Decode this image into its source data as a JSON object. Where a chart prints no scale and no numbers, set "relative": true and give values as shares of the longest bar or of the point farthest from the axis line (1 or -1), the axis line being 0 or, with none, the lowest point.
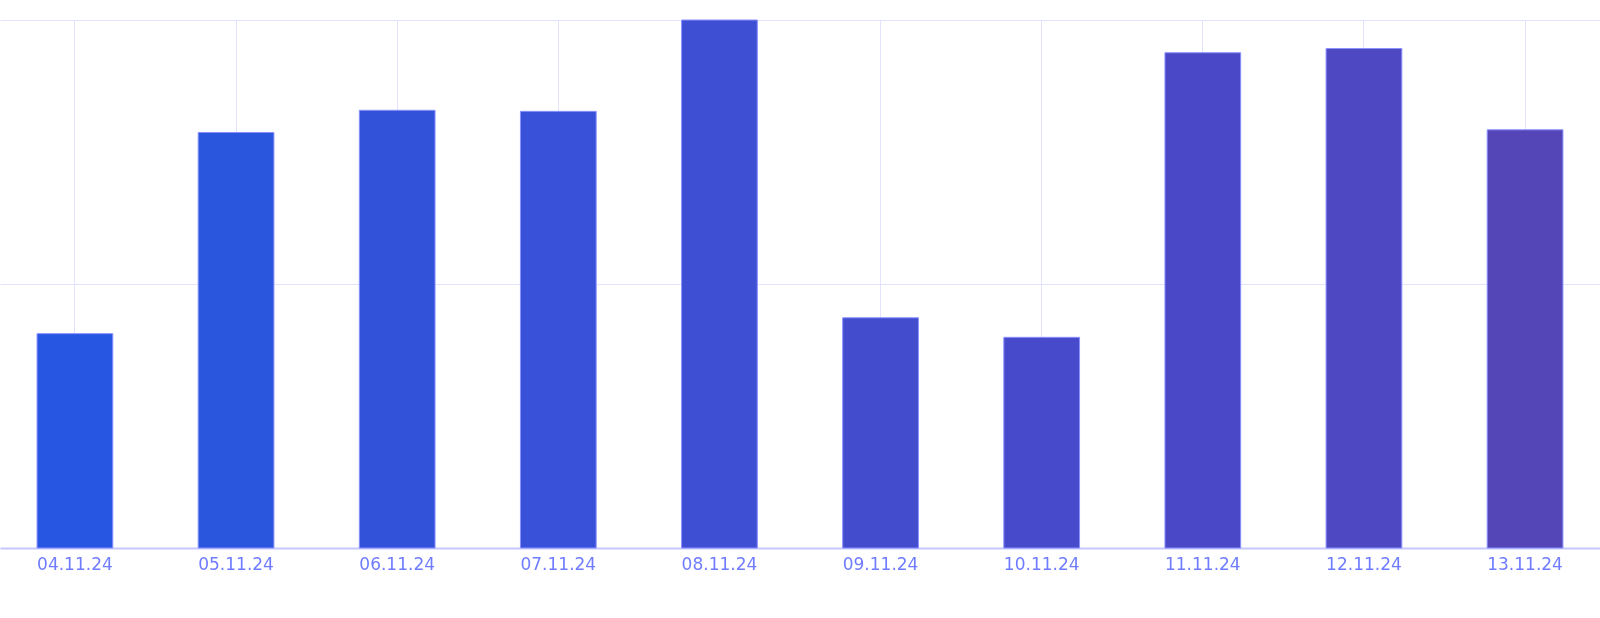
{
  "chart_data": {
    "type": "bar",
    "relative": true,
    "grid": true,
    "categories": [
      "04.11.24",
      "05.11.24",
      "06.11.24",
      "07.11.24",
      "08.11.24",
      "09.11.24",
      "10.11.24",
      "11.11.24",
      "12.11.24",
      "13.11.24"
    ],
    "values": [
      0.406,
      0.787,
      0.829,
      0.827,
      1,
      0.436,
      0.399,
      0.938,
      0.946,
      0.792
    ],
    "colors": [
      "#2756e2",
      "#2a55dd",
      "#3152d9",
      "#3851d8",
      "#3e4fd3",
      "#424ccd",
      "#464acb",
      "#4a48c6",
      "#4e48c3",
      "#5546b8"
    ]
  }
}
